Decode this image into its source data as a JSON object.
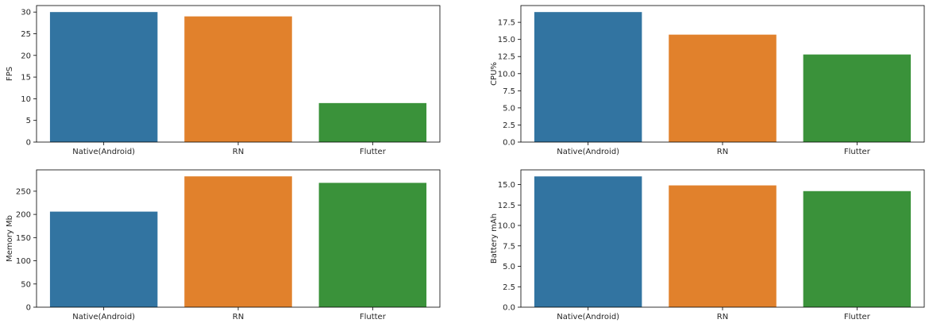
{
  "chart_data": [
    {
      "type": "bar",
      "categories": [
        "Native(Android)",
        "RN",
        "Flutter"
      ],
      "values": [
        30,
        29,
        9
      ],
      "ylabel": "FPS",
      "xlabel": "",
      "ylim": [
        0,
        31.5
      ],
      "yticks": [
        0,
        5,
        10,
        15,
        20,
        25,
        30
      ],
      "ytick_labels": [
        "0",
        "5",
        "10",
        "15",
        "20",
        "25",
        "30"
      ],
      "colors": [
        "#3274a1",
        "#e1812c",
        "#3a923a"
      ]
    },
    {
      "type": "bar",
      "categories": [
        "Native(Android)",
        "RN",
        "Flutter"
      ],
      "values": [
        19.0,
        15.7,
        12.8
      ],
      "ylabel": "CPU%",
      "xlabel": "",
      "ylim": [
        0,
        19.95
      ],
      "yticks": [
        0,
        2.5,
        5,
        7.5,
        10,
        12.5,
        15,
        17.5
      ],
      "ytick_labels": [
        "0.0",
        "2.5",
        "5.0",
        "7.5",
        "10.0",
        "12.5",
        "15.0",
        "17.5"
      ],
      "colors": [
        "#3274a1",
        "#e1812c",
        "#3a923a"
      ]
    },
    {
      "type": "bar",
      "categories": [
        "Native(Android)",
        "RN",
        "Flutter"
      ],
      "values": [
        206,
        282,
        268
      ],
      "ylabel": "Memory Mb",
      "xlabel": "",
      "ylim": [
        0,
        296
      ],
      "yticks": [
        0,
        50,
        100,
        150,
        200,
        250
      ],
      "ytick_labels": [
        "0",
        "50",
        "100",
        "150",
        "200",
        "250"
      ],
      "colors": [
        "#3274a1",
        "#e1812c",
        "#3a923a"
      ]
    },
    {
      "type": "bar",
      "categories": [
        "Native(Android)",
        "RN",
        "Flutter"
      ],
      "values": [
        16.0,
        14.9,
        14.2
      ],
      "ylabel": "Battery mAh",
      "xlabel": "",
      "ylim": [
        0,
        16.8
      ],
      "yticks": [
        0,
        2.5,
        5,
        7.5,
        10,
        12.5,
        15
      ],
      "ytick_labels": [
        "0.0",
        "2.5",
        "5.0",
        "7.5",
        "10.0",
        "12.5",
        "15.0"
      ],
      "colors": [
        "#3274a1",
        "#e1812c",
        "#3a923a"
      ]
    }
  ]
}
